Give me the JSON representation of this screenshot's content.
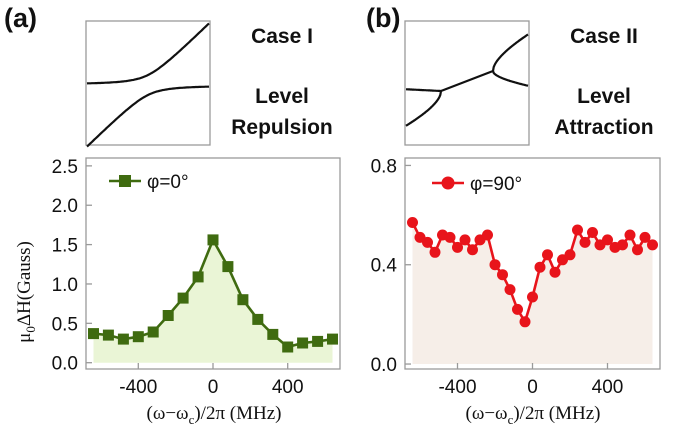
{
  "panels": [
    {
      "id": "a",
      "letter": "(a)",
      "case_label": "Case I",
      "phenomenon_line1": "Level",
      "phenomenon_line2": "Repulsion",
      "inset_type": "repulsion"
    },
    {
      "id": "b",
      "letter": "(b)",
      "case_label": "Case II",
      "phenomenon_line1": "Level",
      "phenomenon_line2": "Attraction",
      "inset_type": "attraction"
    }
  ],
  "shared_ylabel_main": "μ",
  "shared_ylabel_sub": "0",
  "shared_ylabel_rest": "ΔH(Gauss)",
  "colors": {
    "left_series": "#3f6b10",
    "left_fill": "#eaf5d6",
    "right_series": "#e8141b",
    "right_fill": "#f6eee8",
    "axis": "#9a9a9a",
    "inset_curve": "#111111"
  },
  "chart_data": [
    {
      "type": "line",
      "panel": "a",
      "xlabel_prefix": "(ω−ω",
      "xlabel_sub": "c",
      "xlabel_suffix": ")/2π  (MHz)",
      "xlim": [
        -680,
        680
      ],
      "ylim": [
        -0.08,
        2.6
      ],
      "xticks": [
        -400,
        0,
        400
      ],
      "xtick_labels": [
        "-400",
        "0",
        "400"
      ],
      "yticks": [
        0.0,
        0.5,
        1.0,
        1.5,
        2.0,
        2.5
      ],
      "ytick_labels": [
        "0.0",
        "0.5",
        "1.0",
        "1.5",
        "2.0",
        "2.5"
      ],
      "marker": "square",
      "series": [
        {
          "name": "φ=0°",
          "x": [
            -640,
            -560,
            -480,
            -400,
            -320,
            -240,
            -160,
            -80,
            0,
            80,
            160,
            240,
            320,
            400,
            480,
            560,
            640
          ],
          "y": [
            0.37,
            0.35,
            0.3,
            0.33,
            0.39,
            0.6,
            0.82,
            1.09,
            1.56,
            1.22,
            0.8,
            0.55,
            0.36,
            0.2,
            0.25,
            0.27,
            0.3
          ]
        }
      ]
    },
    {
      "type": "line",
      "panel": "b",
      "xlabel_prefix": "(ω−ω",
      "xlabel_sub": "c",
      "xlabel_suffix": ")/2π  (MHz)",
      "xlim": [
        -680,
        680
      ],
      "ylim": [
        -0.02,
        0.83
      ],
      "xticks": [
        -400,
        0,
        400
      ],
      "xtick_labels": [
        "-400",
        "0",
        "400"
      ],
      "yticks": [
        0.0,
        0.4,
        0.8
      ],
      "ytick_labels": [
        "0.0",
        "0.4",
        "0.8"
      ],
      "marker": "circle",
      "series": [
        {
          "name": "φ=90°",
          "x": [
            -640,
            -600,
            -560,
            -520,
            -480,
            -440,
            -400,
            -360,
            -320,
            -280,
            -240,
            -200,
            -160,
            -120,
            -80,
            -40,
            0,
            40,
            80,
            120,
            160,
            200,
            240,
            280,
            320,
            360,
            400,
            440,
            480,
            520,
            560,
            600,
            640
          ],
          "y": [
            0.57,
            0.51,
            0.49,
            0.45,
            0.52,
            0.51,
            0.47,
            0.5,
            0.46,
            0.5,
            0.52,
            0.4,
            0.36,
            0.3,
            0.22,
            0.17,
            0.27,
            0.39,
            0.44,
            0.37,
            0.42,
            0.44,
            0.54,
            0.49,
            0.53,
            0.48,
            0.5,
            0.47,
            0.48,
            0.52,
            0.46,
            0.51,
            0.48
          ]
        }
      ]
    }
  ]
}
